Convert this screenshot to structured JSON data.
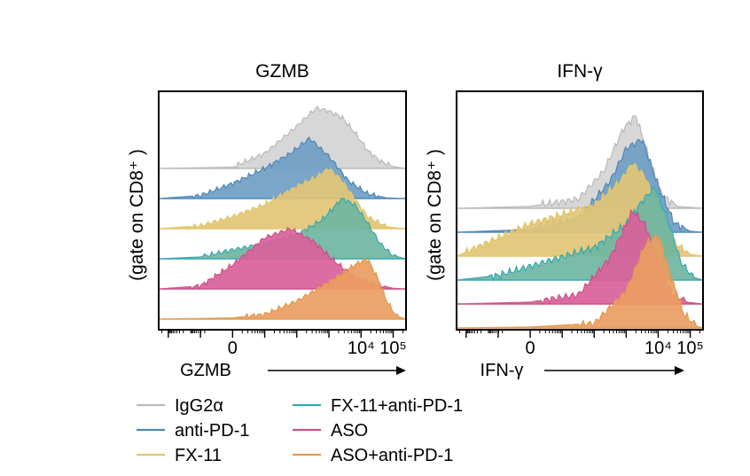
{
  "figure": {
    "legend_items": [
      {
        "label": "IgG2α",
        "color": "#b9b9b9"
      },
      {
        "label": "anti-PD-1",
        "color": "#4f86b6"
      },
      {
        "label": "FX-11",
        "color": "#e3c56a"
      },
      {
        "label": "FX-11+anti-PD-1",
        "color": "#34a9b0"
      },
      {
        "label": "ASO",
        "color": "#d04f88"
      },
      {
        "label": "ASO+anti-PD-1",
        "color": "#e39a4b"
      }
    ],
    "fill_colors": [
      "#d4d4d4",
      "#6f9ec5",
      "#e2c675",
      "#6fb6a2",
      "#d9619a",
      "#ea9d62"
    ]
  },
  "chart_data": [
    {
      "type": "histogram",
      "title": "GZMB",
      "ylabel": "(gate on CD8⁺ )",
      "xlabel": "GZMB",
      "x_scale": "biexponential",
      "xlim": [
        -2.3,
        5.4
      ],
      "tick_labels": [
        {
          "value": 0,
          "text": "0"
        },
        {
          "value": 4,
          "text": "10⁴"
        },
        {
          "value": 5,
          "text": "10⁵"
        }
      ],
      "series": [
        {
          "name": "IgG2α",
          "x": [
            -2.3,
            0,
            1.0,
            2.0,
            2.6,
            3.0,
            3.4,
            3.8,
            4.2,
            4.6,
            5.0,
            5.4
          ],
          "y": [
            0.0,
            0.02,
            0.25,
            0.7,
            1.0,
            0.95,
            0.85,
            0.6,
            0.3,
            0.12,
            0.03,
            0.0
          ]
        },
        {
          "name": "anti-PD-1",
          "x": [
            -2.3,
            -1.0,
            0,
            1.0,
            1.8,
            2.4,
            3.0,
            3.6,
            4.2,
            4.8,
            5.4
          ],
          "y": [
            0.0,
            0.05,
            0.25,
            0.5,
            0.75,
            1.0,
            0.7,
            0.3,
            0.08,
            0.01,
            0.0
          ]
        },
        {
          "name": "FX-11",
          "x": [
            -2.3,
            -1.0,
            0,
            1.0,
            2.0,
            2.6,
            3.0,
            3.4,
            3.8,
            4.2,
            4.8,
            5.4
          ],
          "y": [
            0.0,
            0.05,
            0.2,
            0.4,
            0.7,
            0.85,
            1.0,
            0.8,
            0.5,
            0.2,
            0.03,
            0.0
          ]
        },
        {
          "name": "FX-11+anti-PD-1",
          "x": [
            -2.3,
            -1.0,
            0,
            1.0,
            2.0,
            2.8,
            3.4,
            3.8,
            4.2,
            4.6,
            5.0,
            5.4
          ],
          "y": [
            0.0,
            0.03,
            0.15,
            0.25,
            0.4,
            0.65,
            1.0,
            0.9,
            0.6,
            0.25,
            0.05,
            0.0
          ]
        },
        {
          "name": "ASO",
          "x": [
            -2.3,
            -1.0,
            0,
            1.0,
            1.8,
            2.5,
            3.2,
            3.8,
            4.4,
            5.0,
            5.4
          ],
          "y": [
            0.0,
            0.05,
            0.4,
            0.85,
            1.0,
            0.8,
            0.45,
            0.2,
            0.08,
            0.01,
            0.0
          ]
        },
        {
          "name": "ASO+anti-PD-1",
          "x": [
            -2.3,
            0,
            1.0,
            2.0,
            2.8,
            3.4,
            3.8,
            4.2,
            4.5,
            4.8,
            5.1,
            5.4
          ],
          "y": [
            0.0,
            0.02,
            0.08,
            0.3,
            0.55,
            0.75,
            0.9,
            1.0,
            0.7,
            0.3,
            0.05,
            0.0
          ]
        }
      ]
    },
    {
      "type": "histogram",
      "title": "IFN-γ",
      "ylabel": "(gate on CD8⁺ )",
      "xlabel": "IFN-γ",
      "x_scale": "biexponential",
      "xlim": [
        -2.3,
        5.4
      ],
      "tick_labels": [
        {
          "value": 0,
          "text": "0"
        },
        {
          "value": 4,
          "text": "10⁴"
        },
        {
          "value": 5,
          "text": "10⁵"
        }
      ],
      "series": [
        {
          "name": "IgG2α",
          "x": [
            -2.3,
            0,
            1.5,
            2.3,
            2.9,
            3.3,
            3.7,
            4.1,
            4.6,
            5.4
          ],
          "y": [
            0.0,
            0.02,
            0.1,
            0.4,
            0.85,
            1.0,
            0.55,
            0.15,
            0.02,
            0.0
          ]
        },
        {
          "name": "anti-PD-1",
          "x": [
            -2.3,
            0,
            1.5,
            2.5,
            3.0,
            3.5,
            4.0,
            4.5,
            5.0,
            5.4
          ],
          "y": [
            0.0,
            0.03,
            0.15,
            0.55,
            0.9,
            1.0,
            0.5,
            0.1,
            0.01,
            0.0
          ]
        },
        {
          "name": "FX-11",
          "x": [
            -2.3,
            -1.0,
            0,
            1.0,
            2.0,
            2.8,
            3.2,
            3.6,
            4.0,
            4.5,
            5.0,
            5.4
          ],
          "y": [
            0.0,
            0.2,
            0.35,
            0.45,
            0.55,
            0.8,
            1.0,
            0.85,
            0.5,
            0.15,
            0.02,
            0.0
          ]
        },
        {
          "name": "FX-11+anti-PD-1",
          "x": [
            -2.3,
            -1.0,
            0,
            1.0,
            2.0,
            3.0,
            3.5,
            3.9,
            4.3,
            4.7,
            5.1,
            5.4
          ],
          "y": [
            0.0,
            0.05,
            0.15,
            0.25,
            0.35,
            0.6,
            0.85,
            1.0,
            0.65,
            0.2,
            0.03,
            0.0
          ]
        },
        {
          "name": "ASO",
          "x": [
            -2.3,
            0,
            1.5,
            2.5,
            3.2,
            3.6,
            4.0,
            4.4,
            4.9,
            5.4
          ],
          "y": [
            0.0,
            0.02,
            0.1,
            0.5,
            1.0,
            0.85,
            0.45,
            0.12,
            0.02,
            0.0
          ]
        },
        {
          "name": "ASO+anti-PD-1",
          "x": [
            -2.3,
            0,
            2.0,
            3.0,
            3.6,
            4.0,
            4.4,
            4.8,
            5.2,
            5.4
          ],
          "y": [
            0.0,
            0.01,
            0.05,
            0.4,
            0.9,
            1.0,
            0.55,
            0.15,
            0.02,
            0.0
          ]
        }
      ]
    }
  ]
}
